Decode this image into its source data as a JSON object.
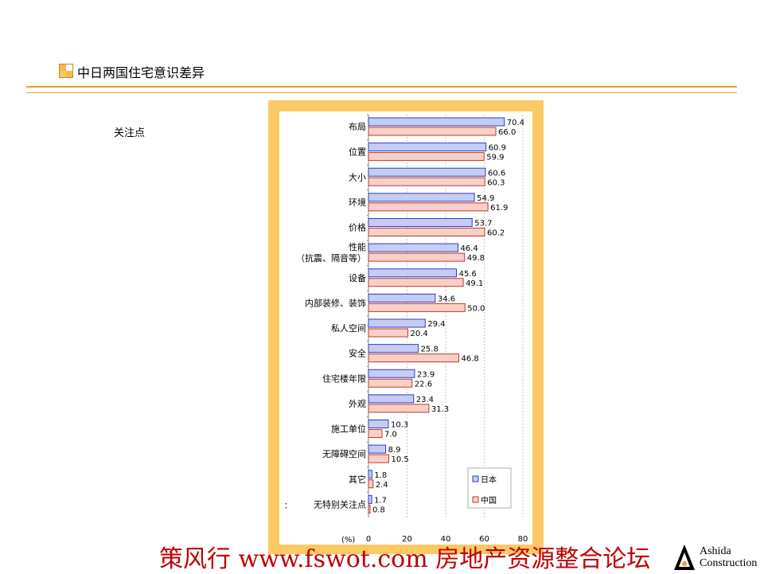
{
  "header": {
    "title": "中日两国住宅意识差异"
  },
  "side_label": "关注点",
  "footer": {
    "text": "策风行 www.fswot.com 房地产资源整合论坛",
    "logo_line1": "Ashida",
    "logo_line2": "Construction"
  },
  "colors": {
    "accent": "#e8a22a",
    "frame": "#fdc964",
    "japan": "#c5cdf5",
    "china": "#f8d0c6",
    "footer_text": "#c00000"
  },
  "chart_data": {
    "type": "bar",
    "orientation": "horizontal",
    "unit_label": "(%)",
    "xlim": [
      0,
      80
    ],
    "x_ticks": [
      "0",
      "20",
      "40",
      "60",
      "80"
    ],
    "legend_position": "bottom-right",
    "categories": [
      {
        "label": "布局"
      },
      {
        "label": "位置"
      },
      {
        "label": "大小"
      },
      {
        "label": "环境"
      },
      {
        "label": "价格"
      },
      {
        "label": "性能",
        "label2": "（抗震、隔音等）"
      },
      {
        "label": "设备"
      },
      {
        "label": "内部装修、装饰"
      },
      {
        "label": "私人空间"
      },
      {
        "label": "安全"
      },
      {
        "label": "住宅楼年限"
      },
      {
        "label": "外观"
      },
      {
        "label": "施工单位"
      },
      {
        "label": "无障碍空间"
      },
      {
        "label": "其它"
      },
      {
        "label": "无特别关注点",
        "prefix": "："
      }
    ],
    "series": [
      {
        "name": "日本",
        "color": "#c5cdf5",
        "values": [
          70.4,
          60.9,
          60.6,
          54.9,
          53.7,
          46.4,
          45.6,
          34.6,
          29.4,
          25.8,
          23.9,
          23.4,
          10.3,
          8.9,
          1.8,
          1.7
        ],
        "labels": [
          "70.4",
          "60.9",
          "60.6",
          "54.9",
          "53.7",
          "46.4",
          "45.6",
          "34.6",
          "29.4",
          "25.8",
          "23.9",
          "23.4",
          "10.3",
          "8.9",
          "1.8",
          "1.7"
        ]
      },
      {
        "name": "中国",
        "color": "#f8d0c6",
        "values": [
          66.0,
          59.9,
          60.3,
          61.9,
          60.2,
          49.8,
          49.1,
          50.0,
          20.4,
          46.8,
          22.6,
          31.3,
          7.0,
          10.5,
          2.4,
          0.8
        ],
        "labels": [
          "66.0",
          "59.9",
          "60.3",
          "61.9",
          "60.2",
          "49.8",
          "49.1",
          "50.0",
          "20.4",
          "46.8",
          "22.6",
          "31.3",
          "7.0",
          "10.5",
          "2.4",
          "0.8"
        ]
      }
    ]
  }
}
